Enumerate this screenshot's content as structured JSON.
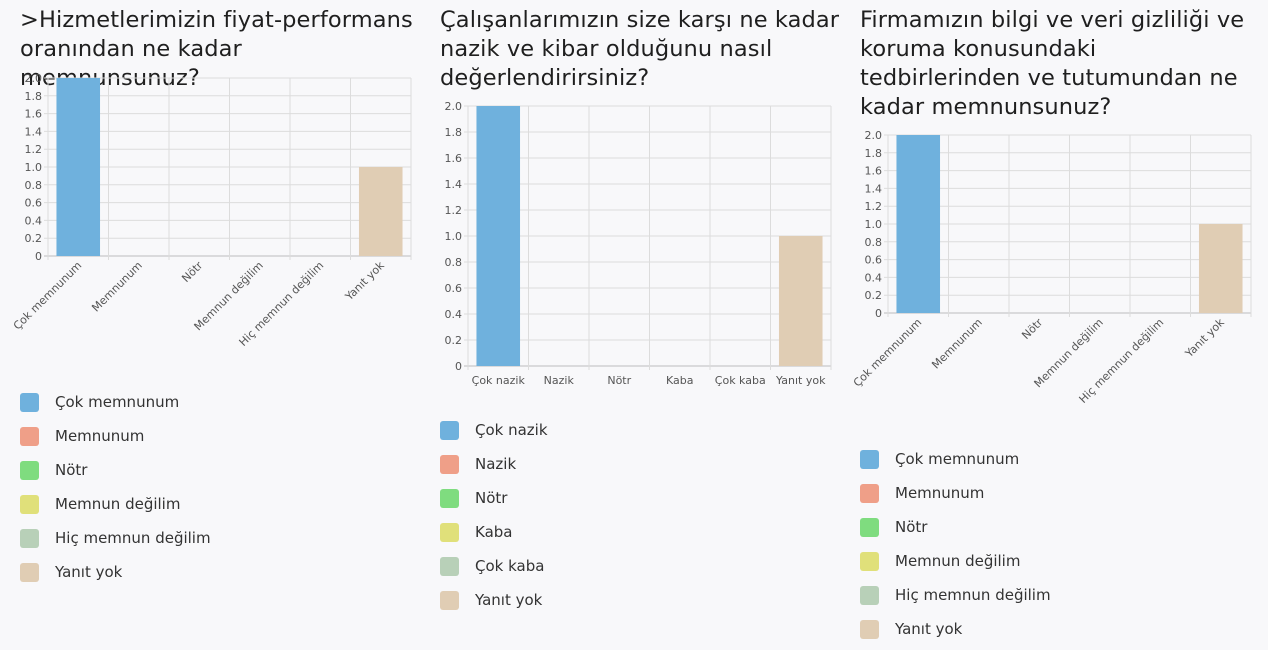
{
  "chart_data": [
    {
      "type": "bar",
      "title": ">Hizmetlerimizin fiyat-performans oranından ne kadar memnunsunuz?",
      "categories": [
        "Çok memnunum",
        "Memnunum",
        "Nötr",
        "Memnun değilim",
        "Hiç memnun değilim",
        "Yanıt yok"
      ],
      "values": [
        2,
        0,
        0,
        0,
        0,
        1
      ],
      "colors": [
        "#6fb1dd",
        "#ef9f88",
        "#7fdc7f",
        "#e0e07a",
        "#b8d0b8",
        "#e0cdb4"
      ],
      "ylim": [
        0,
        2.0
      ],
      "yticks": [
        "0",
        "0.2",
        "0.4",
        "0.6",
        "0.8",
        "1.0",
        "1.2",
        "1.4",
        "1.6",
        "1.8",
        "2.0"
      ],
      "grid": true,
      "legend": "bottom",
      "rotated_labels": true
    },
    {
      "type": "bar",
      "title": "Çalışanlarımızın size karşı ne kadar nazik ve kibar olduğunu nasıl değerlendirirsiniz?",
      "categories": [
        "Çok nazik",
        "Nazik",
        "Nötr",
        "Kaba",
        "Çok kaba",
        "Yanıt yok"
      ],
      "values": [
        2,
        0,
        0,
        0,
        0,
        1
      ],
      "colors": [
        "#6fb1dd",
        "#ef9f88",
        "#7fdc7f",
        "#e0e07a",
        "#b8d0b8",
        "#e0cdb4"
      ],
      "ylim": [
        0,
        2.0
      ],
      "yticks": [
        "0",
        "0.2",
        "0.4",
        "0.6",
        "0.8",
        "1.0",
        "1.2",
        "1.4",
        "1.6",
        "1.8",
        "2.0"
      ],
      "grid": true,
      "legend": "bottom",
      "rotated_labels": false
    },
    {
      "type": "bar",
      "title": "Firmamızın bilgi ve veri gizliliği ve koruma konusundaki tedbirlerinden ve tutumundan ne kadar memnunsunuz?",
      "categories": [
        "Çok memnunum",
        "Memnunum",
        "Nötr",
        "Memnun değilim",
        "Hiç memnun değilim",
        "Yanıt yok"
      ],
      "values": [
        2,
        0,
        0,
        0,
        0,
        1
      ],
      "colors": [
        "#6fb1dd",
        "#ef9f88",
        "#7fdc7f",
        "#e0e07a",
        "#b8d0b8",
        "#e0cdb4"
      ],
      "ylim": [
        0,
        2.0
      ],
      "yticks": [
        "0",
        "0.2",
        "0.4",
        "0.6",
        "0.8",
        "1.0",
        "1.2",
        "1.4",
        "1.6",
        "1.8",
        "2.0"
      ],
      "grid": true,
      "legend": "bottom",
      "rotated_labels": true
    }
  ]
}
